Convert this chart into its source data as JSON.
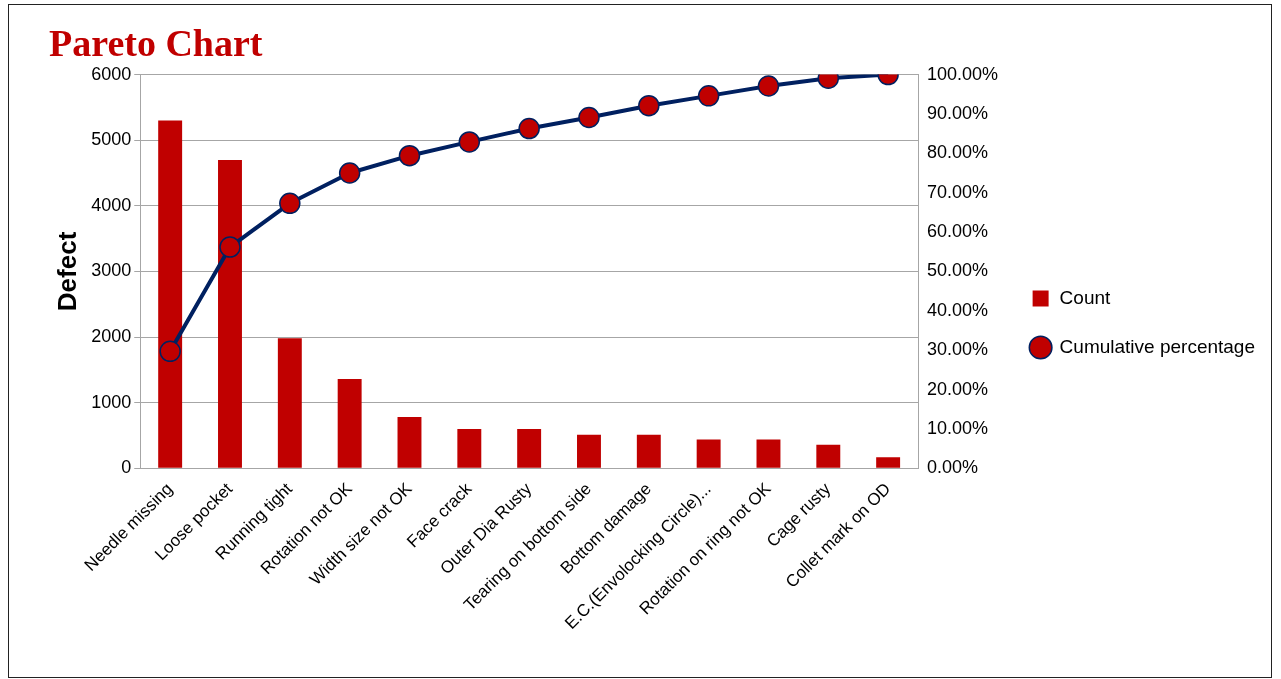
{
  "chart_data": {
    "type": "bar",
    "title": "Pareto Chart",
    "ylabel": "Defect",
    "categories": [
      "Needle missing",
      "Loose pocket",
      "Running tight",
      "Rotation not OK",
      "Width size not OK",
      "Face crack",
      "Outer Dia Rusty",
      "Tearing on bottom side",
      "Bottom damage",
      "E.C.(Envolocking Circle)...",
      "Rotation on ring not OK",
      "Cage rusty",
      "Collet mark on OD"
    ],
    "series": [
      {
        "name": "Count",
        "color": "#c00000",
        "values": [
          5300,
          4700,
          1980,
          1360,
          780,
          600,
          600,
          510,
          510,
          440,
          440,
          360,
          170
        ]
      },
      {
        "name": "Cumulative percentage",
        "type": "line",
        "axis": "y2",
        "color": "#002060",
        "values": [
          29.7,
          56.2,
          67.3,
          75.0,
          79.4,
          82.9,
          86.3,
          89.1,
          92.1,
          94.6,
          97.1,
          99.1,
          100
        ]
      }
    ],
    "ylim": [
      0,
      6000
    ],
    "yticks": [
      0,
      1000,
      2000,
      3000,
      4000,
      5000,
      6000
    ],
    "y2lim": [
      0,
      100
    ],
    "y2ticks": [
      {
        "value": 0,
        "label": "0.00%"
      },
      {
        "value": 10,
        "label": "10.00%"
      },
      {
        "value": 20,
        "label": "20.00%"
      },
      {
        "value": 30,
        "label": "30.00%"
      },
      {
        "value": 40,
        "label": "40.00%"
      },
      {
        "value": 50,
        "label": "50.00%"
      },
      {
        "value": 60,
        "label": "60.00%"
      },
      {
        "value": 70,
        "label": "70.00%"
      },
      {
        "value": 80,
        "label": "80.00%"
      },
      {
        "value": 90,
        "label": "90.00%"
      },
      {
        "value": 100,
        "label": "100.00%"
      }
    ],
    "grid": "y",
    "legend": "right",
    "marker": "circle"
  }
}
